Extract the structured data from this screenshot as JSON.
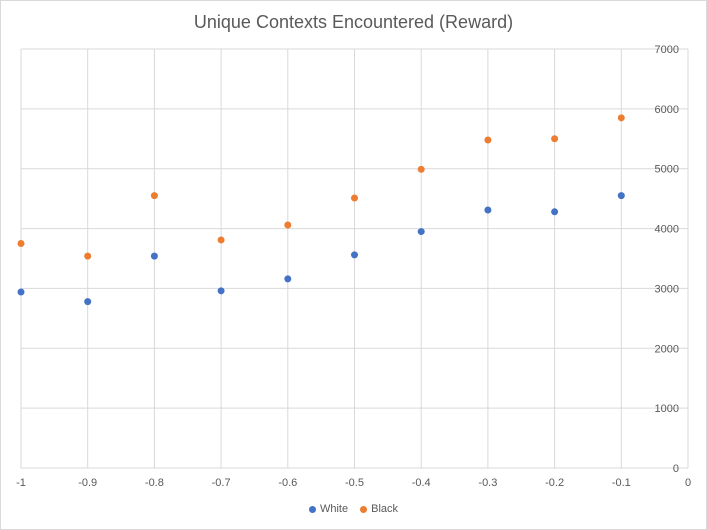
{
  "chart_data": {
    "type": "scatter",
    "title": "Unique Contexts Encountered (Reward)",
    "xlabel": "",
    "ylabel": "",
    "xlim": [
      -1,
      0
    ],
    "ylim": [
      0,
      7000
    ],
    "x_ticks": [
      "-1",
      "-0.9",
      "-0.8",
      "-0.7",
      "-0.6",
      "-0.5",
      "-0.4",
      "-0.3",
      "-0.2",
      "-0.1",
      "0"
    ],
    "y_ticks": [
      "0",
      "1000",
      "2000",
      "3000",
      "4000",
      "5000",
      "6000",
      "7000"
    ],
    "y_axis_side": "right",
    "grid": true,
    "legend_position": "bottom",
    "series": [
      {
        "name": "White",
        "color": "#4472c4",
        "x": [
          -1,
          -0.9,
          -0.8,
          -0.7,
          -0.6,
          -0.5,
          -0.4,
          -0.3,
          -0.2,
          -0.1
        ],
        "y": [
          2940,
          2780,
          3540,
          2960,
          3160,
          3560,
          3950,
          4310,
          4280,
          4550
        ]
      },
      {
        "name": "Black",
        "color": "#ed7d31",
        "x": [
          -1,
          -0.9,
          -0.8,
          -0.7,
          -0.6,
          -0.5,
          -0.4,
          -0.3,
          -0.2,
          -0.1
        ],
        "y": [
          3750,
          3540,
          4550,
          3810,
          4060,
          4510,
          4990,
          5480,
          5500,
          5850
        ]
      }
    ]
  }
}
